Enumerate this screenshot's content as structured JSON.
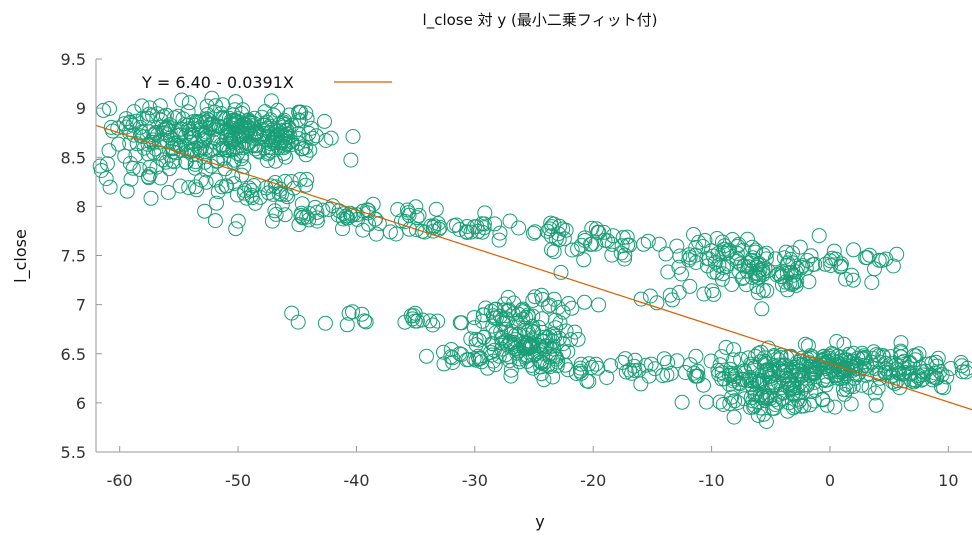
{
  "chart_data": {
    "type": "scatter",
    "title": "l_close 対 y (最小二乗フィット付)",
    "xlabel": "y",
    "ylabel": "l_close",
    "xlim": [
      -62,
      12
    ],
    "ylim": [
      5.5,
      9.5
    ],
    "xticks": [
      -60,
      -50,
      -40,
      -30,
      -20,
      -10,
      0,
      10
    ],
    "yticks": [
      5.5,
      6,
      6.5,
      7,
      7.5,
      8,
      8.5,
      9,
      9.5
    ],
    "xtick_labels": [
      "-60",
      "-50",
      "-40",
      "-30",
      "-20",
      "-10",
      "0",
      "10"
    ],
    "ytick_labels": [
      "5.5",
      "6",
      "6.5",
      "7",
      "7.5",
      "8",
      "8.5",
      "9",
      "9.5"
    ],
    "grid": false,
    "legend_position": "top-left",
    "colors": {
      "points": "#1a9e77",
      "fit": "#d95f02"
    },
    "fit_line": {
      "label": "Y = 6.40 - 0.0391X",
      "intercept": 6.4,
      "slope": -0.0391
    },
    "clusters": [
      {
        "cx": -50,
        "cy": 8.75,
        "sx": 3.5,
        "sy": 0.14,
        "n": 230
      },
      {
        "cx": -57,
        "cy": 8.85,
        "sx": 2.5,
        "sy": 0.1,
        "n": 50
      },
      {
        "cx": -56,
        "cy": 8.45,
        "sx": 3.5,
        "sy": 0.14,
        "n": 70
      },
      {
        "cx": -46,
        "cy": 8.65,
        "sx": 1.5,
        "sy": 0.1,
        "n": 25
      },
      {
        "cx": -49,
        "cy": 8.15,
        "sx": 3.0,
        "sy": 0.08,
        "n": 40
      },
      {
        "cx": -40,
        "cy": 7.9,
        "sx": 4.5,
        "sy": 0.05,
        "n": 55
      },
      {
        "cx": -30,
        "cy": 7.78,
        "sx": 5.0,
        "sy": 0.03,
        "n": 40
      },
      {
        "cx": -21,
        "cy": 7.65,
        "sx": 3.0,
        "sy": 0.08,
        "n": 40
      },
      {
        "cx": -9,
        "cy": 7.5,
        "sx": 4.0,
        "sy": 0.1,
        "n": 60
      },
      {
        "cx": -5,
        "cy": 7.3,
        "sx": 4.0,
        "sy": 0.12,
        "n": 70
      },
      {
        "cx": 0,
        "cy": 7.45,
        "sx": 3.5,
        "sy": 0.06,
        "n": 25
      },
      {
        "cx": -35,
        "cy": 6.87,
        "sx": 4.0,
        "sy": 0.04,
        "n": 25
      },
      {
        "cx": -28,
        "cy": 6.9,
        "sx": 2.0,
        "sy": 0.05,
        "n": 25
      },
      {
        "cx": -26,
        "cy": 6.6,
        "sx": 2.0,
        "sy": 0.12,
        "n": 110
      },
      {
        "cx": -23,
        "cy": 7.0,
        "sx": 2.0,
        "sy": 0.05,
        "n": 15
      },
      {
        "cx": -14,
        "cy": 7.05,
        "sx": 1.5,
        "sy": 0.04,
        "n": 6
      },
      {
        "cx": -29,
        "cy": 6.45,
        "sx": 3.5,
        "sy": 0.06,
        "n": 30
      },
      {
        "cx": -18,
        "cy": 6.35,
        "sx": 4.0,
        "sy": 0.06,
        "n": 40
      },
      {
        "cx": -9,
        "cy": 6.28,
        "sx": 4.0,
        "sy": 0.05,
        "n": 30
      },
      {
        "cx": -4,
        "cy": 6.25,
        "sx": 3.0,
        "sy": 0.14,
        "n": 140
      },
      {
        "cx": 2,
        "cy": 6.38,
        "sx": 3.5,
        "sy": 0.09,
        "n": 150
      },
      {
        "cx": 7,
        "cy": 6.25,
        "sx": 2.5,
        "sy": 0.07,
        "n": 40
      },
      {
        "cx": -5,
        "cy": 6.0,
        "sx": 3.0,
        "sy": 0.06,
        "n": 35
      }
    ]
  }
}
